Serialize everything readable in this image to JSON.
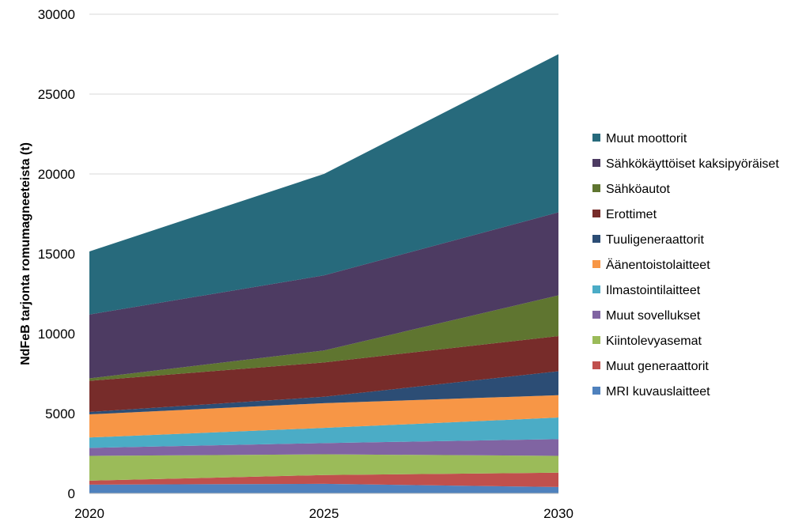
{
  "chart_data": {
    "type": "area",
    "stacked": true,
    "title": "",
    "xlabel": "",
    "ylabel": "NdFeB tarjonta romumagneeteista (t)",
    "x": [
      2020,
      2025,
      2030
    ],
    "x_tick_labels": [
      "2020",
      "2025",
      "2030"
    ],
    "ylim": [
      0,
      30000
    ],
    "y_ticks": [
      0,
      5000,
      10000,
      15000,
      20000,
      25000,
      30000
    ],
    "y_tick_labels": [
      "0",
      "5000",
      "10000",
      "15000",
      "20000",
      "25000",
      "30000"
    ],
    "grid": true,
    "legend_position": "right",
    "series": [
      {
        "name": "MRI kuvauslaitteet",
        "color": "#4f81bd",
        "values": [
          550,
          600,
          400
        ]
      },
      {
        "name": "Muut generaattorit",
        "color": "#c0504d",
        "values": [
          250,
          550,
          900
        ]
      },
      {
        "name": "Kiintolevyasemat",
        "color": "#9bbb59",
        "values": [
          1550,
          1300,
          1050
        ]
      },
      {
        "name": "Muut sovellukset",
        "color": "#8064a2",
        "values": [
          500,
          700,
          1050
        ]
      },
      {
        "name": "Ilmastointilaitteet",
        "color": "#4bacc6",
        "values": [
          650,
          950,
          1350
        ]
      },
      {
        "name": "Äänentoistolaitteet",
        "color": "#f79646",
        "values": [
          1450,
          1550,
          1400
        ]
      },
      {
        "name": "Tuuligeneraattorit",
        "color": "#2c4d75",
        "values": [
          150,
          400,
          1500
        ]
      },
      {
        "name": "Erottimet",
        "color": "#772c2a",
        "values": [
          1950,
          2150,
          2200
        ]
      },
      {
        "name": "Sähköautot",
        "color": "#5f7530",
        "values": [
          150,
          750,
          2550
        ]
      },
      {
        "name": "Sähkökäyttöiset kaksipyöräiset",
        "color": "#4d3b62",
        "values": [
          4000,
          4700,
          5200
        ]
      },
      {
        "name": "Muut moottorit",
        "color": "#276a7c",
        "values": [
          3950,
          6350,
          9900
        ]
      }
    ]
  }
}
